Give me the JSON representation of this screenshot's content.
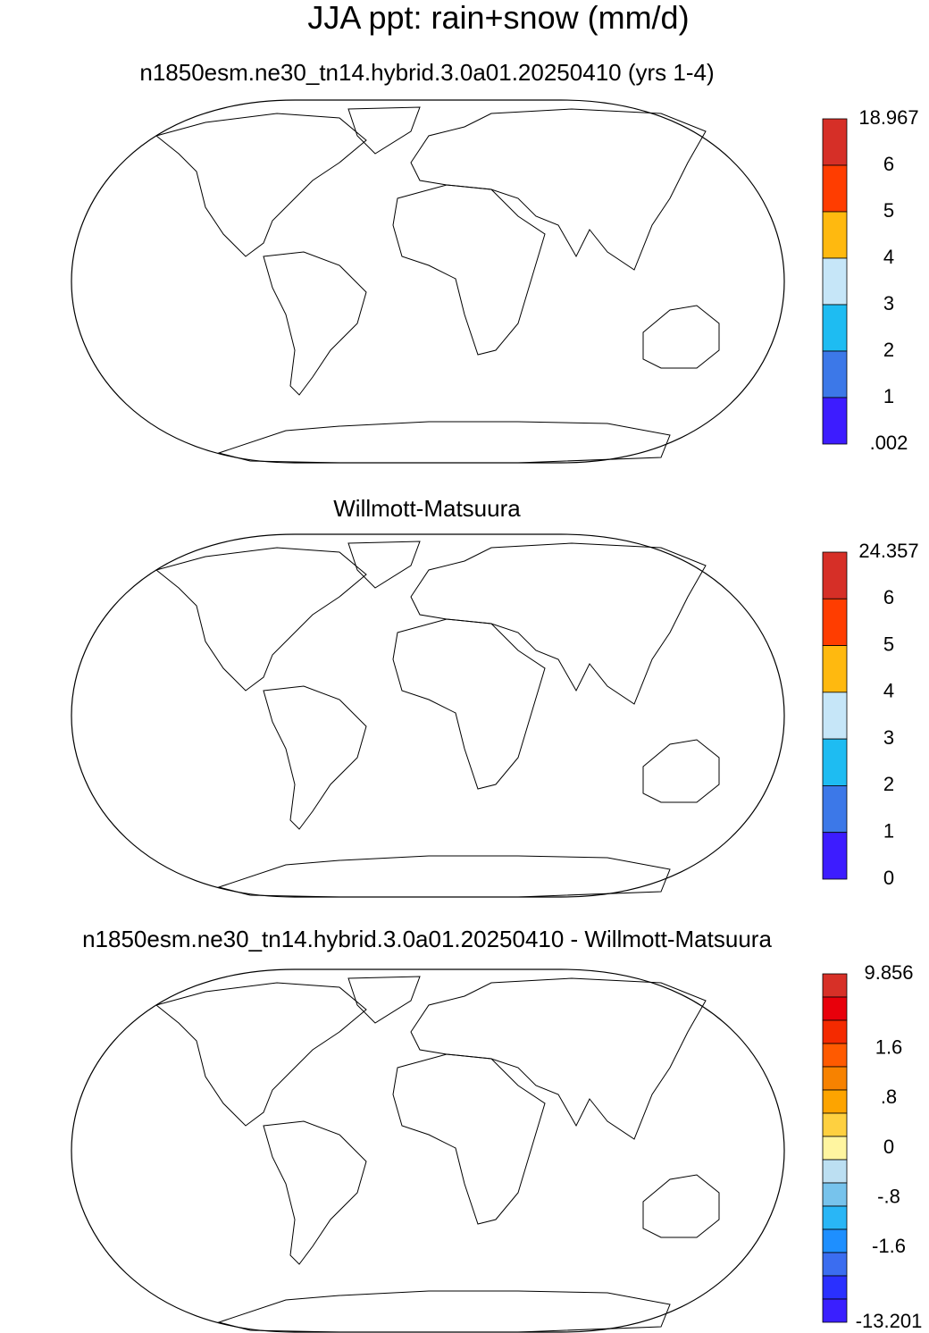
{
  "title": "JJA ppt: rain+snow (mm/d)",
  "panels": [
    {
      "title": "n1850esm.ne30_tn14.hybrid.3.0a01.20250410 (yrs 1-4)",
      "colorbar": {
        "colors": [
          "#d62f27",
          "#ff3d00",
          "#ffb90f",
          "#c6e6f8",
          "#1ebcf2",
          "#3c78e8",
          "#3d1cff"
        ],
        "labels": [
          "18.967",
          "6",
          "5",
          "4",
          "3",
          "2",
          "1",
          ".002"
        ]
      }
    },
    {
      "title": "Willmott-Matsuura",
      "colorbar": {
        "colors": [
          "#d62f27",
          "#ff3d00",
          "#ffb90f",
          "#c6e6f8",
          "#1ebcf2",
          "#3c78e8",
          "#3d1cff"
        ],
        "labels": [
          "24.357",
          "6",
          "5",
          "4",
          "3",
          "2",
          "1",
          "0"
        ]
      }
    },
    {
      "title": "n1850esm.ne30_tn14.hybrid.3.0a01.20250410 - Willmott-Matsuura",
      "colorbar": {
        "colors": [
          "#d73027",
          "#e8000b",
          "#f42a00",
          "#ff5a00",
          "#f78200",
          "#fda400",
          "#fed040",
          "#fff5a0",
          "#bcdff2",
          "#77c3ec",
          "#29b6f6",
          "#1e8fff",
          "#3b6df0",
          "#2a30ff",
          "#3a1fff"
        ],
        "labels": [
          "9.856",
          null,
          null,
          "1.6",
          null,
          ".8",
          null,
          "0",
          null,
          "-.8",
          null,
          "-1.6",
          null,
          null,
          "-13.201"
        ]
      }
    }
  ]
}
